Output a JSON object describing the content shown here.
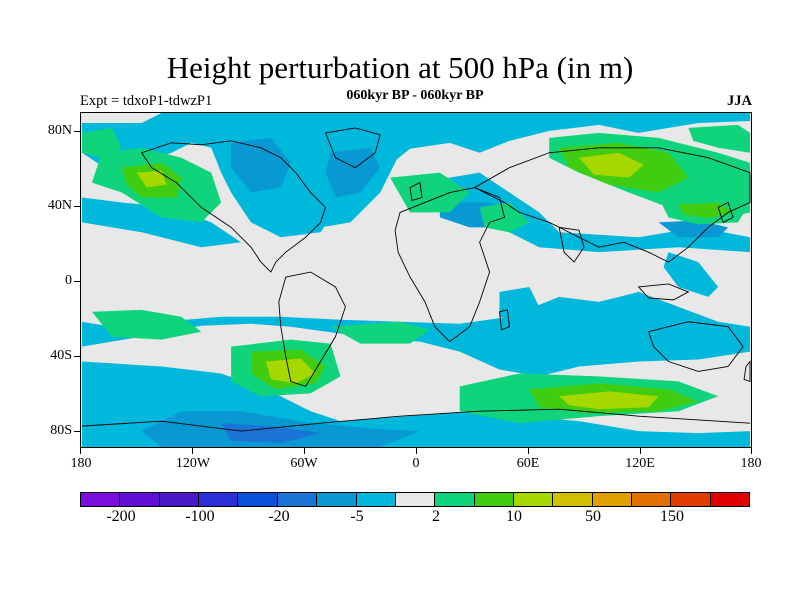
{
  "title": "Height perturbation at 500 hPa (in m)",
  "subtitle": "060kyr BP - 060kyr BP",
  "left_string": "Expt = tdxoP1-tdwzP1",
  "right_string": "JJA",
  "y_axis_labels": [
    "80N",
    "40N",
    "0",
    "40S",
    "80S"
  ],
  "x_axis_labels": [
    "180",
    "120W",
    "60W",
    "0",
    "60E",
    "120E",
    "180"
  ],
  "colorbar": {
    "colors": [
      "#7a0fdc",
      "#6010d0",
      "#4a18c8",
      "#2c30d8",
      "#0a50d8",
      "#1a74d6",
      "#0898d2",
      "#00b8dc",
      "#e8e8e8",
      "#10d47c",
      "#40cc10",
      "#a6d800",
      "#d0c000",
      "#e0a000",
      "#e07000",
      "#e03c00",
      "#e00000"
    ],
    "labels": [
      "-200",
      "-100",
      "-20",
      "-5",
      "2",
      "10",
      "50",
      "150"
    ]
  },
  "chart_data": {
    "type": "heatmap",
    "title": "Height perturbation at 500 hPa (in m)",
    "subtitle": "060kyr BP - 060kyr BP",
    "experiment": "Expt = tdxoP1-tdwzP1",
    "season": "JJA",
    "x_ticks": [
      "180",
      "120W",
      "60W",
      "0",
      "60E",
      "120E",
      "180"
    ],
    "y_ticks": [
      "80N",
      "40N",
      "0",
      "40S",
      "80S"
    ],
    "xlim": [
      -180,
      180
    ],
    "ylim": [
      -90,
      90
    ],
    "levels": [
      -200,
      -150,
      -100,
      -50,
      -20,
      -10,
      -5,
      -2,
      2,
      5,
      10,
      20,
      50,
      100,
      150,
      200
    ],
    "level_labels": [
      "-200",
      "-100",
      "-20",
      "-5",
      "2",
      "10",
      "50",
      "150"
    ],
    "features": [
      {
        "lon": -95,
        "lat": -50,
        "value": 30
      },
      {
        "lon": 100,
        "lat": -62,
        "value": 25
      },
      {
        "lon": 100,
        "lat": 62,
        "value": 22
      },
      {
        "lon": -145,
        "lat": 50,
        "value": 12
      },
      {
        "lon": -30,
        "lat": 60,
        "value": -12
      },
      {
        "lon": -155,
        "lat": -70,
        "value": -10
      },
      {
        "lon": 150,
        "lat": 38,
        "value": 10
      },
      {
        "lon": 10,
        "lat": -30,
        "value": -8
      }
    ]
  }
}
